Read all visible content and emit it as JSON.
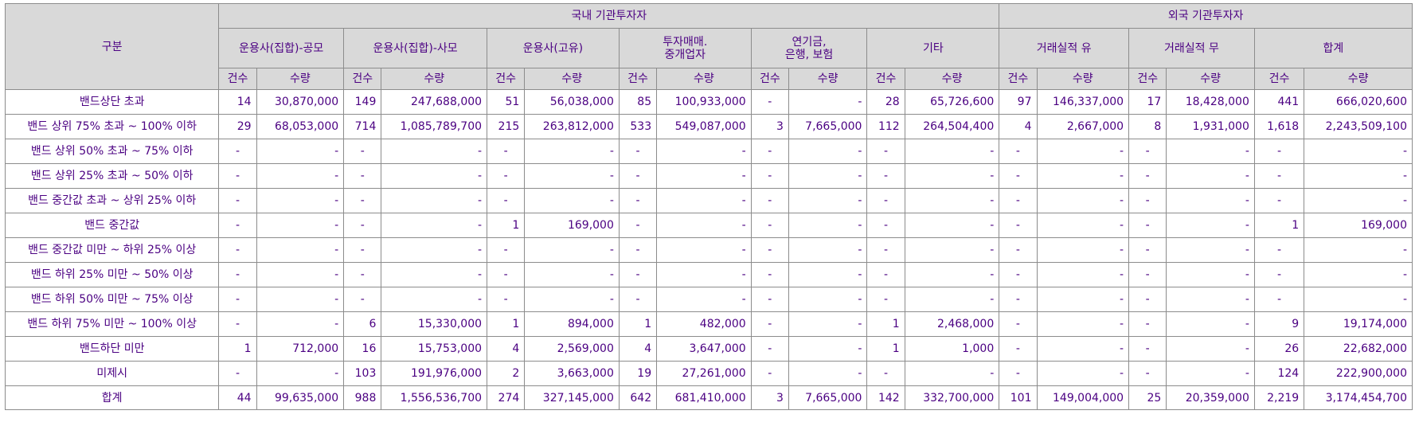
{
  "header": {
    "category_label": "구분",
    "domestic_group": "국내 기관투자자",
    "foreign_group": "외국 기관투자자",
    "investor_types": [
      {
        "lines": [
          "운용사(집합)-공모"
        ]
      },
      {
        "lines": [
          "운용사(집합)-사모"
        ]
      },
      {
        "lines": [
          "운용사(고유)"
        ]
      },
      {
        "lines": [
          "투자매매.",
          "중개업자"
        ]
      },
      {
        "lines": [
          "연기금,",
          "은행, 보험"
        ]
      },
      {
        "lines": [
          "기타"
        ]
      },
      {
        "lines": [
          "거래실적 유"
        ]
      },
      {
        "lines": [
          "거래실적 무"
        ]
      },
      {
        "lines": [
          "합계"
        ]
      }
    ],
    "count_label": "건수",
    "amount_label": "수량"
  },
  "rows": [
    {
      "label": "밴드상단 초과",
      "cells": [
        "14",
        "30,870,000",
        "149",
        "247,688,000",
        "51",
        "56,038,000",
        "85",
        "100,933,000",
        "-",
        "-",
        "28",
        "65,726,600",
        "97",
        "146,337,000",
        "17",
        "18,428,000",
        "441",
        "666,020,600"
      ]
    },
    {
      "label": "밴드 상위 75% 초과 ~ 100% 이하",
      "cells": [
        "29",
        "68,053,000",
        "714",
        "1,085,789,700",
        "215",
        "263,812,000",
        "533",
        "549,087,000",
        "3",
        "7,665,000",
        "112",
        "264,504,400",
        "4",
        "2,667,000",
        "8",
        "1,931,000",
        "1,618",
        "2,243,509,100"
      ]
    },
    {
      "label": "밴드 상위 50% 초과 ~ 75% 이하",
      "cells": [
        "-",
        "-",
        "-",
        "-",
        "-",
        "-",
        "-",
        "-",
        "-",
        "-",
        "-",
        "-",
        "-",
        "-",
        "-",
        "-",
        "-",
        "-"
      ]
    },
    {
      "label": "밴드 상위 25% 초과 ~ 50% 이하",
      "cells": [
        "-",
        "-",
        "-",
        "-",
        "-",
        "-",
        "-",
        "-",
        "-",
        "-",
        "-",
        "-",
        "-",
        "-",
        "-",
        "-",
        "-",
        "-"
      ]
    },
    {
      "label": "밴드 중간값 초과 ~ 상위 25% 이하",
      "cells": [
        "-",
        "-",
        "-",
        "-",
        "-",
        "-",
        "-",
        "-",
        "-",
        "-",
        "-",
        "-",
        "-",
        "-",
        "-",
        "-",
        "-",
        "-"
      ]
    },
    {
      "label": "밴드 중간값",
      "cells": [
        "-",
        "-",
        "-",
        "-",
        "1",
        "169,000",
        "-",
        "-",
        "-",
        "-",
        "-",
        "-",
        "-",
        "-",
        "-",
        "-",
        "1",
        "169,000"
      ]
    },
    {
      "label": "밴드 중간값 미만 ~ 하위 25% 이상",
      "cells": [
        "-",
        "-",
        "-",
        "-",
        "-",
        "-",
        "-",
        "-",
        "-",
        "-",
        "-",
        "-",
        "-",
        "-",
        "-",
        "-",
        "-",
        "-"
      ]
    },
    {
      "label": "밴드 하위 25% 미만 ~ 50% 이상",
      "cells": [
        "-",
        "-",
        "-",
        "-",
        "-",
        "-",
        "-",
        "-",
        "-",
        "-",
        "-",
        "-",
        "-",
        "-",
        "-",
        "-",
        "-",
        "-"
      ]
    },
    {
      "label": "밴드 하위 50% 미만 ~ 75% 이상",
      "cells": [
        "-",
        "-",
        "-",
        "-",
        "-",
        "-",
        "-",
        "-",
        "-",
        "-",
        "-",
        "-",
        "-",
        "-",
        "-",
        "-",
        "-",
        "-"
      ]
    },
    {
      "label": "밴드 하위 75% 미만 ~ 100% 이상",
      "cells": [
        "-",
        "-",
        "6",
        "15,330,000",
        "1",
        "894,000",
        "1",
        "482,000",
        "-",
        "-",
        "1",
        "2,468,000",
        "-",
        "-",
        "-",
        "-",
        "9",
        "19,174,000"
      ]
    },
    {
      "label": "밴드하단 미만",
      "cells": [
        "1",
        "712,000",
        "16",
        "15,753,000",
        "4",
        "2,569,000",
        "4",
        "3,647,000",
        "-",
        "-",
        "1",
        "1,000",
        "-",
        "-",
        "-",
        "-",
        "26",
        "22,682,000"
      ]
    },
    {
      "label": "미제시",
      "cells": [
        "-",
        "-",
        "103",
        "191,976,000",
        "2",
        "3,663,000",
        "19",
        "27,261,000",
        "-",
        "-",
        "-",
        "-",
        "-",
        "-",
        "-",
        "-",
        "124",
        "222,900,000"
      ]
    },
    {
      "label": "합계",
      "cells": [
        "44",
        "99,635,000",
        "988",
        "1,556,536,700",
        "274",
        "327,145,000",
        "642",
        "681,410,000",
        "3",
        "7,665,000",
        "142",
        "332,700,000",
        "101",
        "149,004,000",
        "25",
        "20,359,000",
        "2,219",
        "3,174,454,700"
      ]
    }
  ]
}
